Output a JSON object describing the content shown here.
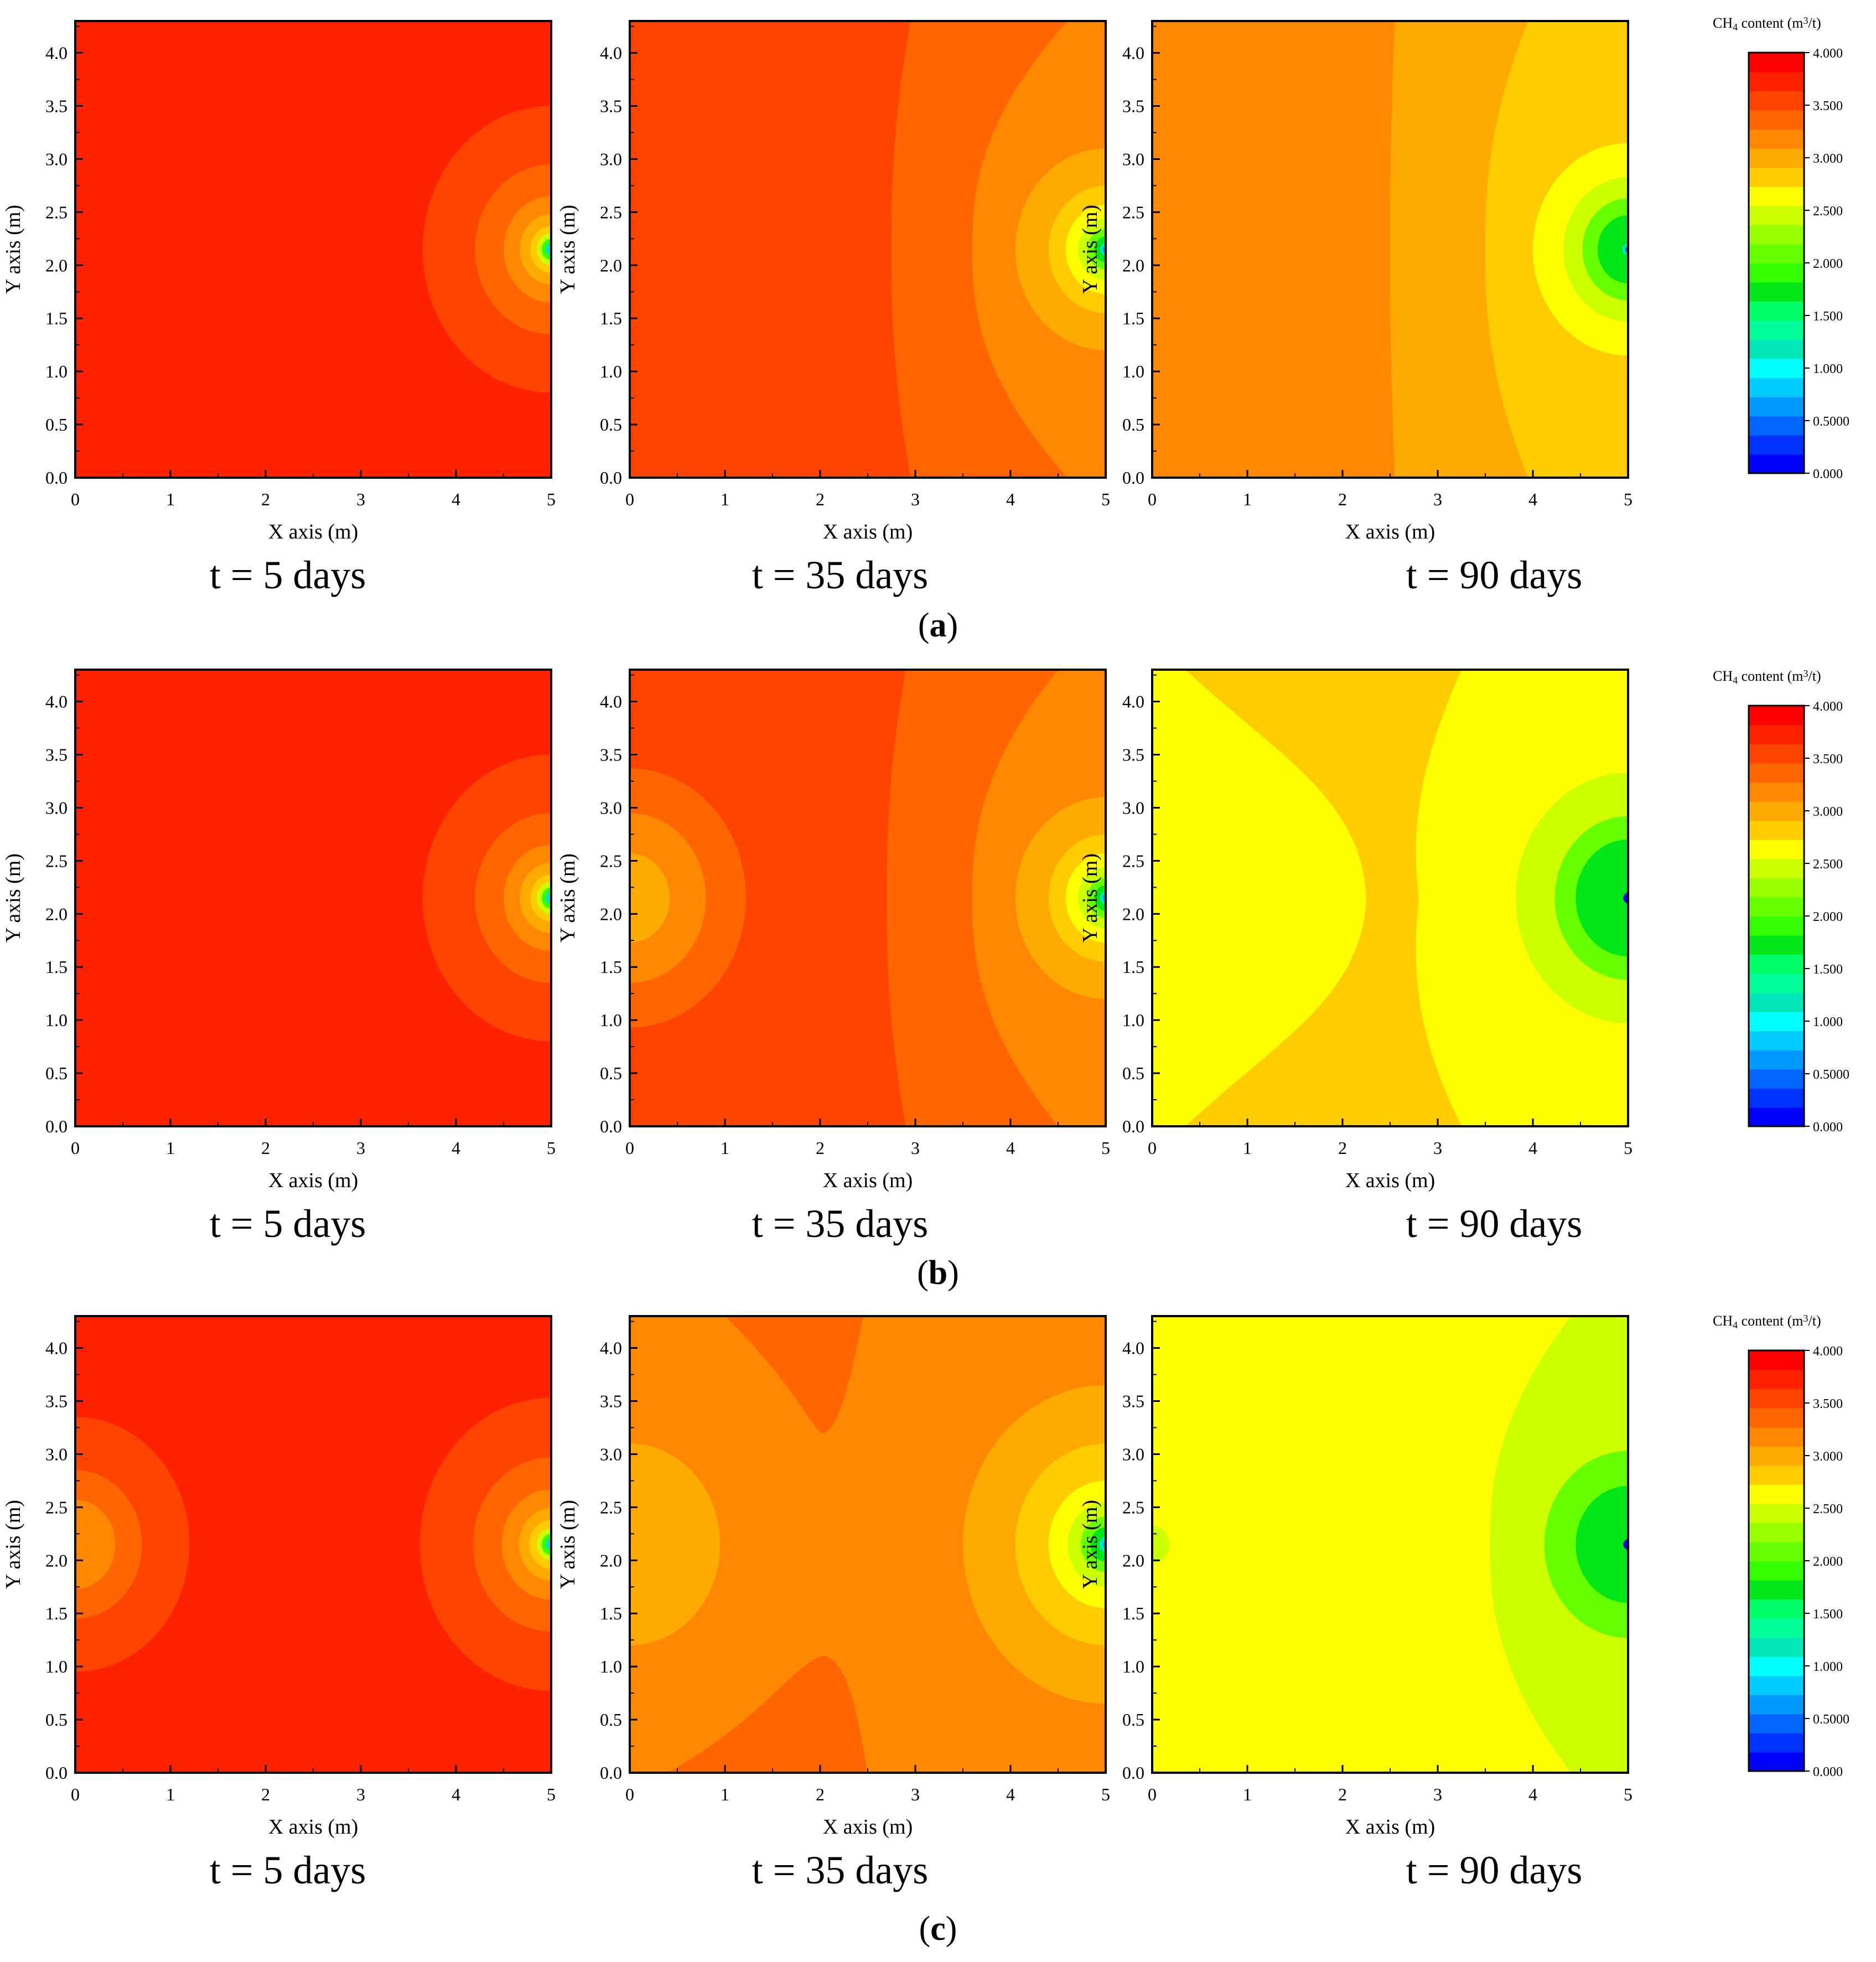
{
  "figure": {
    "rows": [
      {
        "label": "a",
        "paren_open": "(",
        "paren_close": ")"
      },
      {
        "label": "b",
        "paren_open": "(",
        "paren_close": ")"
      },
      {
        "label": "c",
        "paren_open": "(",
        "paren_close": ")"
      }
    ],
    "panel_times": [
      "t = 5 days",
      "t = 35 days",
      "t = 90 days"
    ]
  },
  "chart_data": {
    "type": "heatmap",
    "xlabel": "X axis (m)",
    "ylabel": "Y axis (m)",
    "xlim": [
      0,
      5
    ],
    "ylim": [
      0,
      4.3
    ],
    "x_ticks": [
      "0",
      "1",
      "2",
      "3",
      "4",
      "5"
    ],
    "y_ticks": [
      "0.0",
      "0.5",
      "1.0",
      "1.5",
      "2.0",
      "2.5",
      "3.0",
      "3.5",
      "4.0"
    ],
    "colorbar": {
      "title": "CH4 content (m3/t)",
      "title_base": "CH",
      "title_sub": "4",
      "title_mid": " content  (m",
      "title_sup": "3",
      "title_end": "/t)",
      "range": [
        0,
        4
      ],
      "ticks": [
        "4.000",
        "3.500",
        "3.000",
        "2.500",
        "2.000",
        "1.500",
        "1.000",
        "0.5000",
        "0.000"
      ],
      "levels": [
        "#0000ff",
        "#0033ff",
        "#0066ff",
        "#0099ff",
        "#00ccff",
        "#00ffff",
        "#00e6b8",
        "#00ff99",
        "#00ff66",
        "#00e619",
        "#33ff00",
        "#66ff00",
        "#99ff00",
        "#ccff00",
        "#ffff00",
        "#ffcc00",
        "#ffaa00",
        "#ff8800",
        "#ff6600",
        "#ff4400",
        "#ff2200",
        "#ff0000"
      ],
      "shown_in_rows": [
        "a",
        "b",
        "c"
      ]
    },
    "panels": [
      {
        "row": "a",
        "time": "t = 5 days",
        "background": "#ff2200",
        "contours": [
          {
            "cx": 5,
            "cy": 2.15,
            "r": 1.35,
            "color": "#ff4400"
          },
          {
            "cx": 5,
            "cy": 2.15,
            "r": 0.8,
            "color": "#ff6600"
          },
          {
            "cx": 5,
            "cy": 2.15,
            "r": 0.5,
            "color": "#ff8800"
          },
          {
            "cx": 5,
            "cy": 2.15,
            "r": 0.33,
            "color": "#ffaa00"
          },
          {
            "cx": 5,
            "cy": 2.15,
            "r": 0.22,
            "color": "#ffcc00"
          },
          {
            "cx": 5,
            "cy": 2.15,
            "r": 0.15,
            "color": "#ccff00"
          },
          {
            "cx": 5,
            "cy": 2.15,
            "r": 0.1,
            "color": "#33ff00"
          },
          {
            "cx": 5,
            "cy": 2.15,
            "r": 0.06,
            "color": "#00e6b8"
          },
          {
            "cx": 5,
            "cy": 2.15,
            "r": 0.03,
            "color": "#00ccff"
          }
        ]
      },
      {
        "row": "a",
        "time": "t = 35 days",
        "background": "#ff4400",
        "wave": [
          {
            "ex": 2.95,
            "mx": 2.75,
            "color": "#ff6600"
          },
          {
            "ex": 4.6,
            "mx": 3.6,
            "color": "#ff8800"
          }
        ],
        "contours": [
          {
            "cx": 5,
            "cy": 2.15,
            "r": 0.95,
            "color": "#ffaa00"
          },
          {
            "cx": 5,
            "cy": 2.15,
            "r": 0.6,
            "color": "#ffcc00"
          },
          {
            "cx": 5,
            "cy": 2.15,
            "r": 0.42,
            "color": "#ffff00"
          },
          {
            "cx": 5,
            "cy": 2.15,
            "r": 0.29,
            "color": "#ccff00"
          },
          {
            "cx": 5,
            "cy": 2.15,
            "r": 0.19,
            "color": "#66ff00"
          },
          {
            "cx": 5,
            "cy": 2.15,
            "r": 0.12,
            "color": "#00e619"
          },
          {
            "cx": 5,
            "cy": 2.15,
            "r": 0.06,
            "color": "#00e6b8"
          },
          {
            "cx": 5,
            "cy": 2.15,
            "r": 0.03,
            "color": "#0099ff"
          }
        ]
      },
      {
        "row": "a",
        "time": "t = 90 days",
        "background": "#ff8800",
        "wave": [
          {
            "ex": 2.55,
            "mx": 2.5,
            "color": "#ffaa00"
          },
          {
            "ex": 3.95,
            "mx": 3.5,
            "color": "#ffcc00"
          }
        ],
        "contours": [
          {
            "cx": 5,
            "cy": 2.15,
            "r": 1.0,
            "color": "#ffff00"
          },
          {
            "cx": 5,
            "cy": 2.15,
            "r": 0.68,
            "color": "#ccff00"
          },
          {
            "cx": 5,
            "cy": 2.15,
            "r": 0.48,
            "color": "#66ff00"
          },
          {
            "cx": 5,
            "cy": 2.15,
            "r": 0.32,
            "color": "#00e619"
          },
          {
            "cx": 5,
            "cy": 2.15,
            "r": 0.06,
            "color": "#00e6b8"
          },
          {
            "cx": 5,
            "cy": 2.15,
            "r": 0.03,
            "color": "#0066ff"
          }
        ]
      },
      {
        "row": "b",
        "time": "t = 5 days",
        "background": "#ff2200",
        "contours": [
          {
            "cx": 5,
            "cy": 2.15,
            "r": 1.35,
            "color": "#ff4400"
          },
          {
            "cx": 5,
            "cy": 2.15,
            "r": 0.8,
            "color": "#ff6600"
          },
          {
            "cx": 5,
            "cy": 2.15,
            "r": 0.5,
            "color": "#ff8800"
          },
          {
            "cx": 5,
            "cy": 2.15,
            "r": 0.33,
            "color": "#ffaa00"
          },
          {
            "cx": 5,
            "cy": 2.15,
            "r": 0.22,
            "color": "#ffcc00"
          },
          {
            "cx": 5,
            "cy": 2.15,
            "r": 0.15,
            "color": "#ccff00"
          },
          {
            "cx": 5,
            "cy": 2.15,
            "r": 0.1,
            "color": "#33ff00"
          },
          {
            "cx": 5,
            "cy": 2.15,
            "r": 0.06,
            "color": "#00e6b8"
          },
          {
            "cx": 5,
            "cy": 2.15,
            "r": 0.03,
            "color": "#00ccff"
          }
        ]
      },
      {
        "row": "b",
        "time": "t = 35 days",
        "background": "#ff4400",
        "wave": [
          {
            "ex": 2.9,
            "mx": 2.7,
            "color": "#ff6600"
          },
          {
            "ex": 4.5,
            "mx": 3.6,
            "color": "#ff8800"
          }
        ],
        "contours": [
          {
            "cx": 0,
            "cy": 2.15,
            "r": 1.22,
            "color": "#ff6600"
          },
          {
            "cx": 0,
            "cy": 2.15,
            "r": 0.8,
            "color": "#ff8800"
          },
          {
            "cx": 0,
            "cy": 2.15,
            "r": 0.42,
            "color": "#ffaa00"
          },
          {
            "cx": 5,
            "cy": 2.15,
            "r": 0.95,
            "color": "#ffaa00"
          },
          {
            "cx": 5,
            "cy": 2.15,
            "r": 0.6,
            "color": "#ffcc00"
          },
          {
            "cx": 5,
            "cy": 2.15,
            "r": 0.42,
            "color": "#ffff00"
          },
          {
            "cx": 5,
            "cy": 2.15,
            "r": 0.29,
            "color": "#ccff00"
          },
          {
            "cx": 5,
            "cy": 2.15,
            "r": 0.19,
            "color": "#66ff00"
          },
          {
            "cx": 5,
            "cy": 2.15,
            "r": 0.12,
            "color": "#00e619"
          },
          {
            "cx": 5,
            "cy": 2.15,
            "r": 0.06,
            "color": "#00e6b8"
          },
          {
            "cx": 5,
            "cy": 2.15,
            "r": 0.03,
            "color": "#0099ff"
          }
        ]
      },
      {
        "row": "b",
        "time": "t = 90 days",
        "background": "#ffff00",
        "band": {
          "x_top_left": 0.35,
          "x_top_right": 3.25,
          "x_mid_left": 2.25,
          "x_mid_right": 2.8,
          "color": "#ffcc00"
        },
        "contours": [
          {
            "cx": 5,
            "cy": 2.15,
            "r": 1.18,
            "color": "#ccff00"
          },
          {
            "cx": 5,
            "cy": 2.15,
            "r": 0.77,
            "color": "#66ff00"
          },
          {
            "cx": 5,
            "cy": 2.15,
            "r": 0.55,
            "color": "#00e619"
          },
          {
            "cx": 5,
            "cy": 2.15,
            "r": 0.05,
            "color": "#0000ff"
          }
        ]
      },
      {
        "row": "c",
        "time": "t = 5 days",
        "background": "#ff2200",
        "contours": [
          {
            "cx": 0,
            "cy": 2.15,
            "r": 1.2,
            "color": "#ff4400"
          },
          {
            "cx": 0,
            "cy": 2.15,
            "r": 0.7,
            "color": "#ff6600"
          },
          {
            "cx": 0,
            "cy": 2.15,
            "r": 0.42,
            "color": "#ff8800"
          },
          {
            "cx": 5,
            "cy": 2.15,
            "r": 1.38,
            "color": "#ff4400"
          },
          {
            "cx": 5,
            "cy": 2.15,
            "r": 0.82,
            "color": "#ff6600"
          },
          {
            "cx": 5,
            "cy": 2.15,
            "r": 0.52,
            "color": "#ff8800"
          },
          {
            "cx": 5,
            "cy": 2.15,
            "r": 0.34,
            "color": "#ffaa00"
          },
          {
            "cx": 5,
            "cy": 2.15,
            "r": 0.23,
            "color": "#ffcc00"
          },
          {
            "cx": 5,
            "cy": 2.15,
            "r": 0.15,
            "color": "#ccff00"
          },
          {
            "cx": 5,
            "cy": 2.15,
            "r": 0.1,
            "color": "#33ff00"
          },
          {
            "cx": 5,
            "cy": 2.15,
            "r": 0.06,
            "color": "#00e6b8"
          },
          {
            "cx": 5,
            "cy": 2.15,
            "r": 0.03,
            "color": "#00ccff"
          }
        ]
      },
      {
        "row": "c",
        "time": "t = 35 days",
        "background": "#ff8800",
        "lobes": {
          "color": "#ff6600",
          "x_top": 2.05,
          "y_top": 3.2,
          "x_bottom": 2.05,
          "y_bottom": 1.1
        },
        "contours": [
          {
            "cx": 0,
            "cy": 2.15,
            "r": 0.95,
            "color": "#ffaa00"
          },
          {
            "cx": 5,
            "cy": 2.15,
            "r": 1.5,
            "color": "#ffaa00"
          },
          {
            "cx": 5,
            "cy": 2.15,
            "r": 0.95,
            "color": "#ffcc00"
          },
          {
            "cx": 5,
            "cy": 2.15,
            "r": 0.6,
            "color": "#ffff00"
          },
          {
            "cx": 5,
            "cy": 2.15,
            "r": 0.4,
            "color": "#ccff00"
          },
          {
            "cx": 5,
            "cy": 2.15,
            "r": 0.26,
            "color": "#66ff00"
          },
          {
            "cx": 5,
            "cy": 2.15,
            "r": 0.16,
            "color": "#00e619"
          },
          {
            "cx": 5,
            "cy": 2.15,
            "r": 0.07,
            "color": "#00e6b8"
          },
          {
            "cx": 5,
            "cy": 2.15,
            "r": 0.03,
            "color": "#0099ff"
          }
        ]
      },
      {
        "row": "c",
        "time": "t = 90 days",
        "background": "#ffff00",
        "wave": [
          {
            "ex": 4.4,
            "mx": 3.55,
            "color": "#ccff00"
          }
        ],
        "contours": [
          {
            "cx": 0,
            "cy": 2.15,
            "r": 0.18,
            "color": "#ccff00"
          },
          {
            "cx": 5,
            "cy": 2.15,
            "r": 0.88,
            "color": "#66ff00"
          },
          {
            "cx": 5,
            "cy": 2.15,
            "r": 0.55,
            "color": "#00e619"
          },
          {
            "cx": 5,
            "cy": 2.15,
            "r": 0.05,
            "color": "#0000ff"
          }
        ]
      }
    ]
  }
}
